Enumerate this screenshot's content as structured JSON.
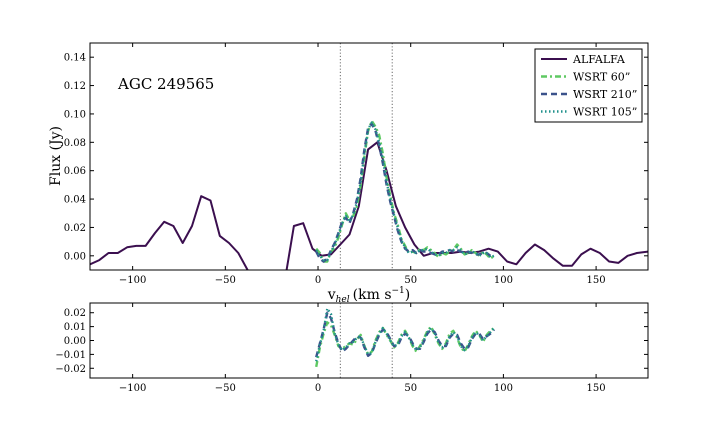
{
  "chart_data": [
    {
      "type": "line",
      "panel": "main",
      "xlabel": "v",
      "xlabel_sub": "hel",
      "xlabel_units": "(km s",
      "xlabel_exp": "−1",
      "xlabel_close": ")",
      "ylabel": "Flux (Jy)",
      "annotation": "AGC 249565",
      "xlim": [
        -123,
        178
      ],
      "ylim": [
        -0.01,
        0.15
      ],
      "xticks": [
        -100,
        -50,
        0,
        50,
        100,
        150
      ],
      "xtick_labels": [
        "−100",
        "−50",
        "0",
        "50",
        "100",
        "150"
      ],
      "yticks": [
        0.0,
        0.02,
        0.04,
        0.06,
        0.08,
        0.1,
        0.12,
        0.14
      ],
      "ytick_labels": [
        "0.00",
        "0.02",
        "0.04",
        "0.06",
        "0.08",
        "0.10",
        "0.12",
        "0.14"
      ],
      "vlines": [
        12,
        40
      ],
      "legend_position": "top-right",
      "series": [
        {
          "name": "ALFALFA",
          "color": "#3b0f4f",
          "style": "solid",
          "x": [
            -123,
            -118,
            -113,
            -108,
            -103,
            -98,
            -93,
            -88,
            -83,
            -78,
            -73,
            -68,
            -63,
            -58,
            -53,
            -48,
            -43,
            -38,
            -33,
            -28,
            -23,
            -18,
            -13,
            -8,
            -3,
            2,
            7,
            12,
            17,
            22,
            27,
            32,
            37,
            42,
            47,
            52,
            57,
            62,
            67,
            72,
            77,
            82,
            87,
            92,
            97,
            102,
            107,
            112,
            117,
            122,
            127,
            132,
            137,
            142,
            147,
            152,
            157,
            162,
            167,
            172,
            178
          ],
          "y": [
            -0.006,
            -0.003,
            0.002,
            0.002,
            0.006,
            0.007,
            0.007,
            0.016,
            0.024,
            0.021,
            0.009,
            0.021,
            0.042,
            0.039,
            0.014,
            0.009,
            0.002,
            -0.01,
            -0.02,
            -0.025,
            -0.025,
            -0.018,
            0.021,
            0.023,
            0.005,
            0.0,
            0.001,
            0.008,
            0.015,
            0.035,
            0.075,
            0.08,
            0.06,
            0.035,
            0.02,
            0.008,
            0.0,
            0.002,
            0.002,
            0.002,
            0.003,
            0.002,
            0.003,
            0.005,
            0.003,
            -0.004,
            -0.006,
            0.002,
            0.008,
            0.004,
            -0.002,
            -0.007,
            -0.007,
            0.001,
            0.005,
            0.002,
            -0.004,
            -0.005,
            0.0,
            0.002,
            0.003
          ]
        },
        {
          "name": "WSRT 60”",
          "color": "#5ec962",
          "style": "dashdot",
          "x": [
            -1,
            1,
            3,
            5,
            7,
            9,
            11,
            13,
            15,
            17,
            19,
            21,
            23,
            25,
            27,
            29,
            31,
            33,
            35,
            37,
            39,
            41,
            43,
            45,
            47,
            49,
            51,
            53,
            55,
            57,
            59,
            61,
            63,
            65,
            67,
            69,
            71,
            73,
            75,
            77,
            79,
            81,
            83,
            85,
            87,
            89,
            91,
            93,
            95
          ],
          "y": [
            0.005,
            0.002,
            -0.004,
            -0.004,
            0.003,
            0.006,
            0.013,
            0.022,
            0.03,
            0.025,
            0.028,
            0.035,
            0.05,
            0.07,
            0.088,
            0.095,
            0.091,
            0.085,
            0.072,
            0.055,
            0.042,
            0.03,
            0.022,
            0.012,
            0.007,
            0.002,
            0.003,
            0.002,
            0.005,
            0.004,
            0.006,
            0.004,
            0.002,
            -0.001,
            0.002,
            0.001,
            0.003,
            0.004,
            0.008,
            0.005,
            0.001,
            0.002,
            0.004,
            0.002,
            0.0,
            0.003,
            0.001,
            -0.002,
            0.0
          ]
        },
        {
          "name": "WSRT 210”",
          "color": "#3b528b",
          "style": "dashed",
          "x": [
            -1,
            1,
            3,
            5,
            7,
            9,
            11,
            13,
            15,
            17,
            19,
            21,
            23,
            25,
            27,
            29,
            31,
            33,
            35,
            37,
            39,
            41,
            43,
            45,
            47,
            49,
            51,
            53,
            55,
            57,
            59,
            61,
            63,
            65,
            67,
            69,
            71,
            73,
            75,
            77,
            79,
            81,
            83,
            85,
            87,
            89,
            91,
            93,
            95
          ],
          "y": [
            0.003,
            -0.002,
            -0.004,
            -0.002,
            0.004,
            0.009,
            0.016,
            0.024,
            0.027,
            0.023,
            0.03,
            0.04,
            0.055,
            0.075,
            0.09,
            0.093,
            0.088,
            0.078,
            0.065,
            0.05,
            0.038,
            0.028,
            0.018,
            0.01,
            0.005,
            0.003,
            0.004,
            0.002,
            0.004,
            0.003,
            0.003,
            0.002,
            0.001,
            0.001,
            0.003,
            0.003,
            0.004,
            0.003,
            0.004,
            0.003,
            0.002,
            0.003,
            0.002,
            0.001,
            0.001,
            0.002,
            0.002,
            0.0,
            0.001
          ]
        },
        {
          "name": "WSRT 105”",
          "color": "#21918c",
          "style": "dotted",
          "x": [
            -1,
            1,
            3,
            5,
            7,
            9,
            11,
            13,
            15,
            17,
            19,
            21,
            23,
            25,
            27,
            29,
            31,
            33,
            35,
            37,
            39,
            41,
            43,
            45,
            47,
            49,
            51,
            53,
            55,
            57,
            59,
            61,
            63,
            65,
            67,
            69,
            71,
            73,
            75,
            77,
            79,
            81,
            83,
            85,
            87,
            89,
            91,
            93,
            95
          ],
          "y": [
            0.004,
            0.0,
            -0.003,
            -0.003,
            0.003,
            0.008,
            0.015,
            0.023,
            0.028,
            0.024,
            0.029,
            0.038,
            0.052,
            0.072,
            0.089,
            0.094,
            0.089,
            0.08,
            0.068,
            0.052,
            0.04,
            0.029,
            0.02,
            0.011,
            0.006,
            0.002,
            0.003,
            0.002,
            0.004,
            0.004,
            0.005,
            0.003,
            0.001,
            0.0,
            0.002,
            0.002,
            0.004,
            0.004,
            0.006,
            0.004,
            0.001,
            0.002,
            0.003,
            0.002,
            0.0,
            0.002,
            0.002,
            -0.001,
            0.0
          ]
        }
      ]
    },
    {
      "type": "line",
      "panel": "residuals",
      "xlim": [
        -123,
        178
      ],
      "ylim": [
        -0.027,
        0.027
      ],
      "xticks": [
        -100,
        -50,
        0,
        50,
        100,
        150
      ],
      "xtick_labels": [
        "−100",
        "−50",
        "0",
        "50",
        "100",
        "150"
      ],
      "yticks": [
        -0.02,
        -0.01,
        0.0,
        0.01,
        0.02
      ],
      "ytick_labels": [
        "−0.02",
        "−0.01",
        "0.00",
        "0.01",
        "0.02"
      ],
      "vlines": [
        12,
        40
      ],
      "series": [
        {
          "color": "#5ec962",
          "style": "dashdot",
          "x": [
            -1,
            1,
            3,
            5,
            7,
            9,
            11,
            13,
            15,
            17,
            19,
            21,
            23,
            25,
            27,
            29,
            31,
            33,
            35,
            37,
            39,
            41,
            43,
            45,
            47,
            49,
            51,
            53,
            55,
            57,
            59,
            61,
            63,
            65,
            67,
            69,
            71,
            73,
            75,
            77,
            79,
            81,
            83,
            85,
            87,
            89,
            91,
            93,
            95
          ],
          "y": [
            -0.019,
            -0.005,
            0.005,
            0.013,
            0.011,
            0.004,
            -0.004,
            -0.006,
            -0.004,
            -0.002,
            -0.003,
            0.001,
            0.004,
            -0.004,
            -0.01,
            -0.008,
            0.0,
            0.006,
            0.009,
            0.004,
            0.0,
            -0.005,
            -0.002,
            0.004,
            0.007,
            0.002,
            -0.004,
            -0.008,
            -0.004,
            0.001,
            0.007,
            0.01,
            0.004,
            -0.002,
            -0.006,
            -0.002,
            0.005,
            0.007,
            0.002,
            -0.005,
            -0.008,
            -0.003,
            0.003,
            0.007,
            0.004,
            -0.001,
            0.004,
            0.007,
            0.009
          ]
        },
        {
          "color": "#3b528b",
          "style": "dashed",
          "x": [
            -1,
            1,
            3,
            5,
            7,
            9,
            11,
            13,
            15,
            17,
            19,
            21,
            23,
            25,
            27,
            29,
            31,
            33,
            35,
            37,
            39,
            41,
            43,
            45,
            47,
            49,
            51,
            53,
            55,
            57,
            59,
            61,
            63,
            65,
            67,
            69,
            71,
            73,
            75,
            77,
            79,
            81,
            83,
            85,
            87,
            89,
            91,
            93,
            95
          ],
          "y": [
            -0.012,
            -0.002,
            0.008,
            0.02,
            0.016,
            0.006,
            -0.002,
            -0.008,
            -0.006,
            -0.003,
            0.0,
            0.003,
            0.002,
            -0.005,
            -0.011,
            -0.009,
            -0.002,
            0.004,
            0.008,
            0.006,
            0.001,
            -0.004,
            -0.004,
            0.002,
            0.005,
            0.003,
            -0.002,
            -0.006,
            -0.006,
            -0.001,
            0.005,
            0.008,
            0.006,
            0.0,
            -0.004,
            -0.004,
            0.002,
            0.005,
            0.004,
            -0.002,
            -0.006,
            -0.005,
            0.001,
            0.005,
            0.005,
            0.001,
            0.003,
            0.005,
            0.008
          ]
        },
        {
          "color": "#21918c",
          "style": "dotted",
          "x": [
            -1,
            1,
            3,
            5,
            7,
            9,
            11,
            13,
            15,
            17,
            19,
            21,
            23,
            25,
            27,
            29,
            31,
            33,
            35,
            37,
            39,
            41,
            43,
            45,
            47,
            49,
            51,
            53,
            55,
            57,
            59,
            61,
            63,
            65,
            67,
            69,
            71,
            73,
            75,
            77,
            79,
            81,
            83,
            85,
            87,
            89,
            91,
            93,
            95
          ],
          "y": [
            -0.015,
            -0.003,
            0.007,
            0.023,
            0.019,
            0.005,
            -0.003,
            -0.007,
            -0.005,
            -0.002,
            -0.001,
            0.002,
            0.003,
            -0.004,
            -0.01,
            -0.009,
            -0.001,
            0.005,
            0.009,
            0.005,
            0.0,
            -0.004,
            -0.003,
            0.003,
            0.006,
            0.002,
            -0.003,
            -0.007,
            -0.005,
            0.0,
            0.006,
            0.009,
            0.005,
            -0.001,
            -0.005,
            -0.003,
            0.003,
            0.006,
            0.003,
            -0.004,
            -0.007,
            -0.004,
            0.002,
            0.006,
            0.004,
            0.0,
            0.003,
            0.006,
            0.009
          ]
        }
      ]
    }
  ]
}
